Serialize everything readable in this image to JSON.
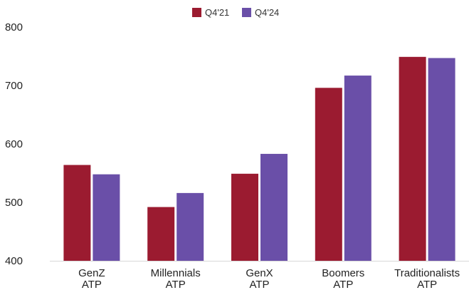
{
  "chart_data": {
    "type": "bar",
    "categories": [
      [
        "GenZ",
        "ATP"
      ],
      [
        "Millennials",
        "ATP"
      ],
      [
        "GenX",
        "ATP"
      ],
      [
        "Boomers",
        "ATP"
      ],
      [
        "Traditionalists",
        "ATP"
      ]
    ],
    "series": [
      {
        "name": "Q4'21",
        "color": "#9b1b30",
        "values": [
          564,
          492,
          549,
          696,
          749
        ]
      },
      {
        "name": "Q4'24",
        "color": "#6a4fa8",
        "values": [
          548,
          516,
          583,
          717,
          747
        ]
      }
    ],
    "ylim": [
      400,
      800
    ],
    "yticks": [
      400,
      500,
      600,
      700,
      800
    ],
    "grid": false,
    "legend_position": "top-center",
    "title": "",
    "xlabel": "",
    "ylabel": ""
  }
}
